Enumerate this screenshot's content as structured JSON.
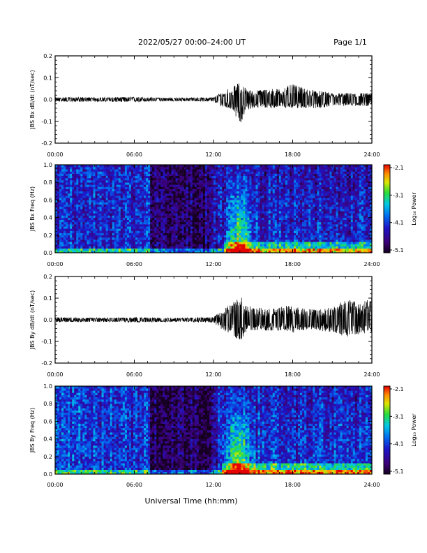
{
  "header": {
    "date_range": "2022/05/27  00:00–24:00 UT",
    "page": "Page 1/1"
  },
  "xlabel": "Universal Time (hh:mm)",
  "time_ticks": [
    "00:00",
    "06:00",
    "12:00",
    "18:00",
    "24:00"
  ],
  "colors": {
    "trace": "#000000",
    "background": "#ffffff"
  },
  "chart_data": [
    {
      "type": "line",
      "panel": "bx-timeseries",
      "ylabel": "JBS Bx dB/dt (nT/sec)",
      "xlim_hours": [
        0,
        24
      ],
      "ylim": [
        -0.2,
        0.2
      ],
      "yticks": [
        "0.2",
        "0.1",
        "0.0",
        "-0.1",
        "-0.2"
      ],
      "x_hours": [
        0,
        2,
        4,
        6,
        8,
        10,
        12,
        12.5,
        13,
        13.5,
        14,
        14.5,
        15,
        16,
        17,
        18,
        19,
        20,
        21,
        22,
        23,
        24
      ],
      "envelope_max": [
        0.01,
        0.01,
        0.01,
        0.012,
        0.008,
        0.008,
        0.01,
        0.03,
        0.05,
        0.06,
        0.08,
        0.05,
        0.04,
        0.05,
        0.05,
        0.07,
        0.05,
        0.04,
        0.03,
        0.03,
        0.03,
        0.03
      ],
      "envelope_min": [
        -0.01,
        -0.01,
        -0.01,
        -0.012,
        -0.008,
        -0.008,
        -0.01,
        -0.03,
        -0.04,
        -0.05,
        -0.12,
        -0.05,
        -0.04,
        -0.04,
        -0.04,
        -0.04,
        -0.04,
        -0.04,
        -0.03,
        -0.03,
        -0.03,
        -0.03
      ]
    },
    {
      "type": "heatmap",
      "panel": "bx-spectrogram",
      "ylabel": "JBS Bx Freq (Hz)",
      "xlim_hours": [
        0,
        24
      ],
      "ylim": [
        0,
        1
      ],
      "yticks": [
        "1.0",
        "0.8",
        "0.6",
        "0.4",
        "0.2",
        "0.0"
      ],
      "colorbar": {
        "label": "Log₁₀ Power",
        "ticks": [
          "-2.1",
          "-3.1",
          "-4.1",
          "-5.1"
        ],
        "range": [
          -5.1,
          -2.1
        ]
      },
      "segments": [
        {
          "from_hour": 0,
          "to_hour": 7.2,
          "mean_log_power": -4.2
        },
        {
          "from_hour": 7.2,
          "to_hour": 12,
          "mean_log_power": -4.8
        },
        {
          "from_hour": 12,
          "to_hour": 24,
          "mean_log_power": -4.4
        }
      ],
      "low_freq_enhancement_hours": [
        12.8,
        24
      ]
    },
    {
      "type": "line",
      "panel": "by-timeseries",
      "ylabel": "JBS By dB/dt (nT/sec)",
      "xlim_hours": [
        0,
        24
      ],
      "ylim": [
        -0.2,
        0.2
      ],
      "yticks": [
        "0.2",
        "0.1",
        "0.0",
        "-0.1",
        "-0.2"
      ],
      "x_hours": [
        0,
        2,
        4,
        6,
        8,
        10,
        12,
        12.5,
        13,
        13.5,
        14,
        14.5,
        15,
        16,
        17,
        18,
        19,
        20,
        21,
        22,
        23,
        24
      ],
      "envelope_max": [
        0.012,
        0.01,
        0.01,
        0.012,
        0.01,
        0.01,
        0.012,
        0.04,
        0.06,
        0.08,
        0.12,
        0.07,
        0.06,
        0.05,
        0.06,
        0.07,
        0.05,
        0.05,
        0.06,
        0.1,
        0.08,
        0.1
      ],
      "envelope_min": [
        -0.012,
        -0.01,
        -0.01,
        -0.012,
        -0.01,
        -0.01,
        -0.012,
        -0.04,
        -0.06,
        -0.07,
        -0.11,
        -0.06,
        -0.05,
        -0.05,
        -0.05,
        -0.06,
        -0.05,
        -0.05,
        -0.06,
        -0.08,
        -0.07,
        -0.06
      ]
    },
    {
      "type": "heatmap",
      "panel": "by-spectrogram",
      "ylabel": "JBS By Freq (Hz)",
      "xlim_hours": [
        0,
        24
      ],
      "ylim": [
        0,
        1
      ],
      "yticks": [
        "1.0",
        "0.8",
        "0.6",
        "0.4",
        "0.2",
        "0.0"
      ],
      "colorbar": {
        "label": "Log₁₀ Power",
        "ticks": [
          "-2.1",
          "-3.1",
          "-4.1",
          "-5.1"
        ],
        "range": [
          -5.1,
          -2.1
        ]
      },
      "segments": [
        {
          "from_hour": 0,
          "to_hour": 7.2,
          "mean_log_power": -4.1
        },
        {
          "from_hour": 7.2,
          "to_hour": 12,
          "mean_log_power": -4.8
        },
        {
          "from_hour": 12,
          "to_hour": 24,
          "mean_log_power": -4.3
        }
      ],
      "low_freq_enhancement_hours": [
        12.6,
        24
      ]
    }
  ]
}
